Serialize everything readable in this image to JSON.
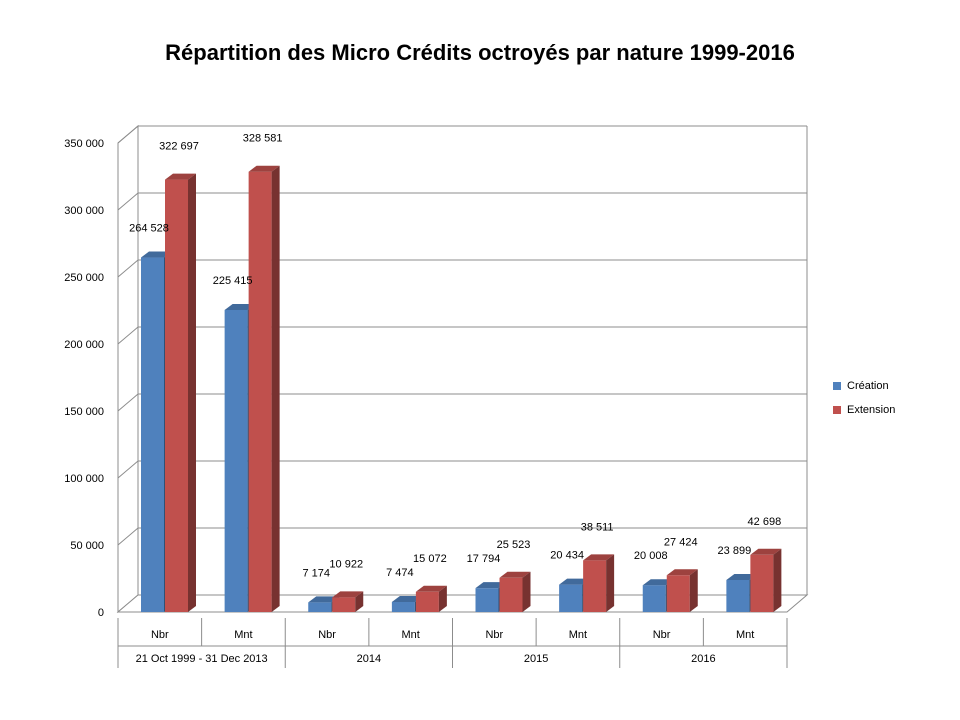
{
  "chart_data": {
    "type": "bar",
    "title": "Répartition des Micro Crédits octroyés par nature 1999-2016",
    "xlabel": "",
    "ylabel": "",
    "ylim": [
      0,
      350000
    ],
    "yticks": [
      0,
      50000,
      100000,
      150000,
      200000,
      250000,
      300000,
      350000
    ],
    "ytick_labels": [
      "0",
      "50 000",
      "100 000",
      "150 000",
      "200 000",
      "250 000",
      "300 000",
      "350 000"
    ],
    "categories": [
      "Nbr",
      "Mnt",
      "Nbr",
      "Mnt",
      "Nbr",
      "Mnt",
      "Nbr",
      "Mnt"
    ],
    "groups": [
      {
        "label": "21 Oct 1999 - 31 Dec 2013",
        "span": 2
      },
      {
        "label": "2014",
        "span": 2
      },
      {
        "label": "2015",
        "span": 2
      },
      {
        "label": "2016",
        "span": 2
      }
    ],
    "series": [
      {
        "name": "Création",
        "color": "#4F81BD",
        "values": [
          264528,
          225415,
          7174,
          7474,
          17794,
          20434,
          20008,
          23899
        ],
        "labels": [
          "264 528",
          "225 415",
          "7 174",
          "7 474",
          "17 794",
          "20 434",
          "20 008",
          "23 899"
        ]
      },
      {
        "name": "Extension",
        "color": "#C0504D",
        "values": [
          322697,
          328581,
          10922,
          15072,
          25523,
          38511,
          27424,
          42698
        ],
        "labels": [
          "322 697",
          "328 581",
          "10 922",
          "15 072",
          "25 523",
          "38 511",
          "27 424",
          "42 698"
        ]
      }
    ],
    "legend_position": "right",
    "grid": true
  }
}
